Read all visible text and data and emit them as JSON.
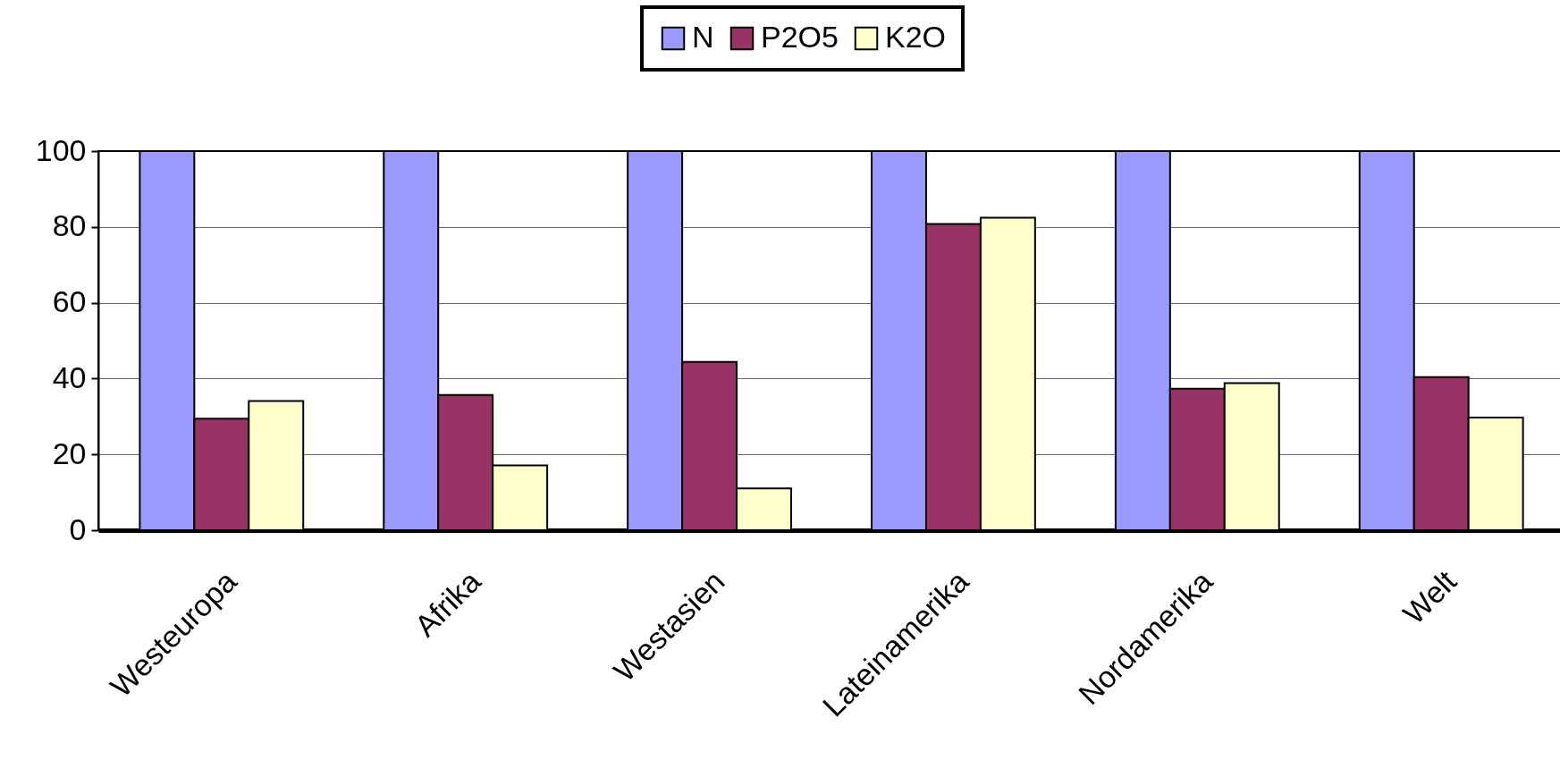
{
  "chart_data": {
    "type": "bar",
    "categories": [
      "Westeuropa",
      "Afrika",
      "Westasien",
      "Lateinamerika",
      "Nordamerika",
      "Welt"
    ],
    "series": [
      {
        "name": "N",
        "color": "#9999ff",
        "values": [
          100,
          100,
          100,
          100,
          100,
          100
        ]
      },
      {
        "name": "P2O5",
        "color": "#993366",
        "values": [
          29.4,
          35.7,
          44.4,
          80.8,
          37.3,
          40.4
        ]
      },
      {
        "name": "K2O",
        "color": "#ffffcc",
        "values": [
          34.1,
          17.1,
          11.0,
          82.4,
          38.8,
          29.7
        ]
      }
    ],
    "ylim": [
      0,
      100
    ],
    "yticks": [
      0,
      20,
      40,
      60,
      80,
      100
    ],
    "grid": "y",
    "legend": "top"
  }
}
